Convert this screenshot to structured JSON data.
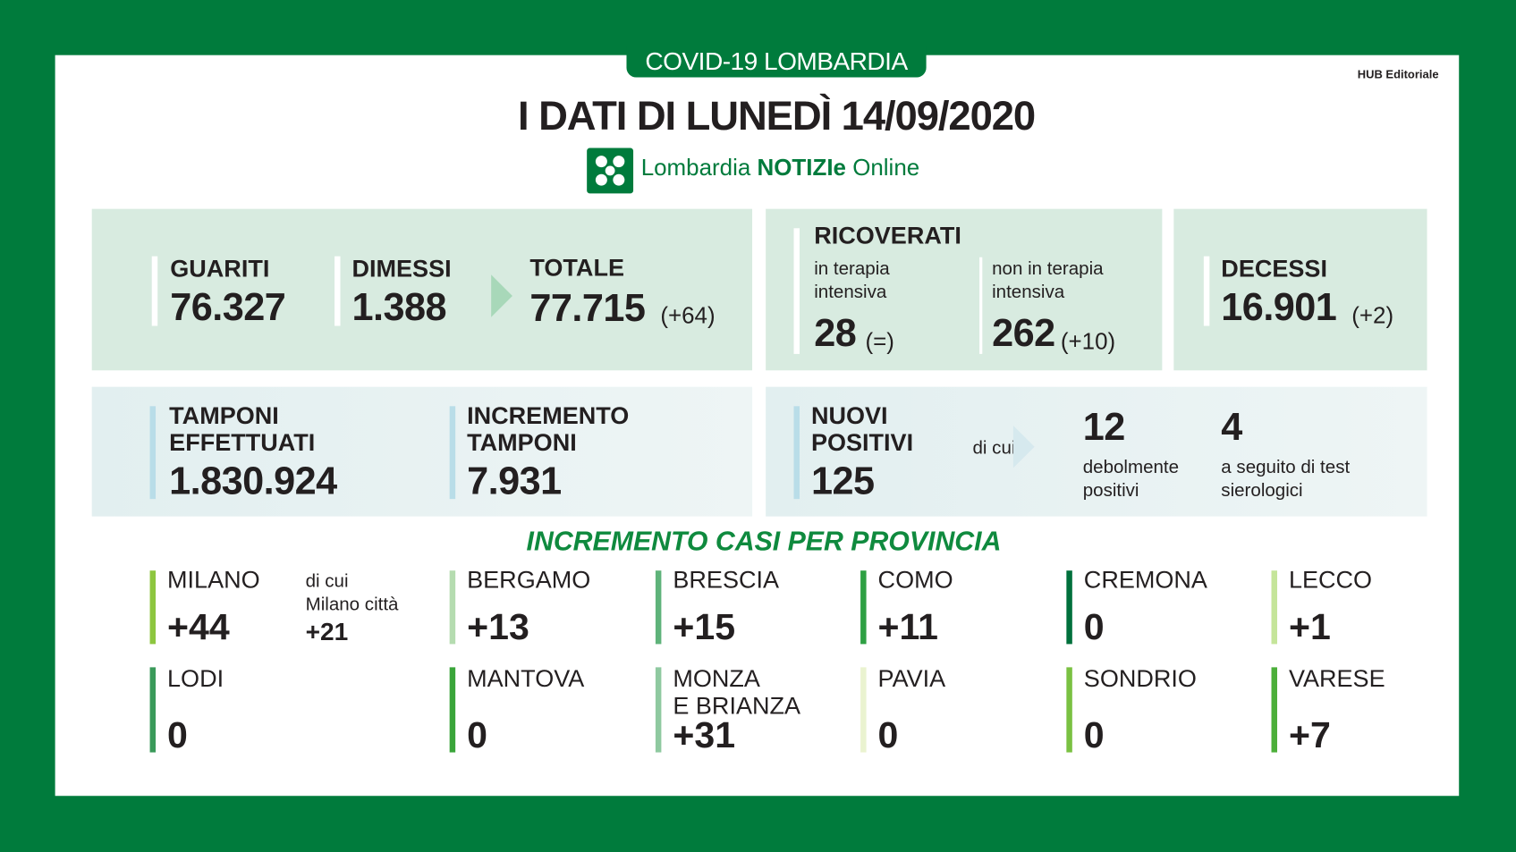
{
  "header": {
    "banner": "COVID-19 LOMBARDIA",
    "publisher": "HUB Editoriale",
    "title": "I DATI DI LUNEDÌ 14/09/2020",
    "logo": {
      "part1": "Lombardia",
      "part2": "NOTIZIe",
      "part3": "Online"
    }
  },
  "colors": {
    "brand_green": "#007b3c",
    "box_green": "#d8ebe0",
    "box_blue": "#e2eff0"
  },
  "guariti": {
    "label": "GUARITI",
    "value": "76.327"
  },
  "dimessi": {
    "label": "DIMESSI",
    "value": "1.388"
  },
  "totale": {
    "label": "TOTALE",
    "value": "77.715",
    "delta": "(+64)"
  },
  "ricoverati": {
    "label": "RICOVERATI",
    "ti": {
      "label1": "in terapia",
      "label2": "intensiva",
      "value": "28",
      "delta": "(=)"
    },
    "nti": {
      "label1": "non in terapia",
      "label2": "intensiva",
      "value": "262",
      "delta": "(+10)"
    }
  },
  "decessi": {
    "label": "DECESSI",
    "value": "16.901",
    "delta": "(+2)"
  },
  "tamponi": {
    "label1": "TAMPONI",
    "label2": "EFFETTUATI",
    "value": "1.830.924"
  },
  "incremento": {
    "label1": "INCREMENTO",
    "label2": "TAMPONI",
    "value": "7.931"
  },
  "positivi": {
    "label1": "NUOVI",
    "label2": "POSITIVI",
    "value": "125",
    "di_cui": "di cui",
    "deb": {
      "value": "12",
      "label1": "debolmente",
      "label2": "positivi"
    },
    "sier": {
      "value": "4",
      "label1": "a seguito di test",
      "label2": "sierologici"
    }
  },
  "province": {
    "title": "INCREMENTO CASI PER PROVINCIA",
    "milano_city": {
      "l1": "di cui",
      "l2": "Milano città",
      "value": "+21"
    },
    "items": [
      {
        "name": "MILANO",
        "value": "+44",
        "color": "#8dc63f"
      },
      {
        "name": "BERGAMO",
        "value": "+13",
        "color": "#b5dcb0"
      },
      {
        "name": "BRESCIA",
        "value": "+15",
        "color": "#5fb37a"
      },
      {
        "name": "COMO",
        "value": "+11",
        "color": "#2ea043"
      },
      {
        "name": "CREMONA",
        "value": "0",
        "color": "#00703c"
      },
      {
        "name": "LECCO",
        "value": "+1",
        "color": "#c5e59a"
      },
      {
        "name": "LODI",
        "value": "0",
        "color": "#3a9a5a"
      },
      {
        "name": "MANTOVA",
        "value": "0",
        "color": "#3aa53a"
      },
      {
        "name": "MONZA",
        "name2": "E BRIANZA",
        "value": "+31",
        "color": "#8fc9a0"
      },
      {
        "name": "PAVIA",
        "value": "0",
        "color": "#eaf3d0"
      },
      {
        "name": "SONDRIO",
        "value": "0",
        "color": "#7ac142"
      },
      {
        "name": "VARESE",
        "value": "+7",
        "color": "#4caf3a"
      }
    ]
  }
}
